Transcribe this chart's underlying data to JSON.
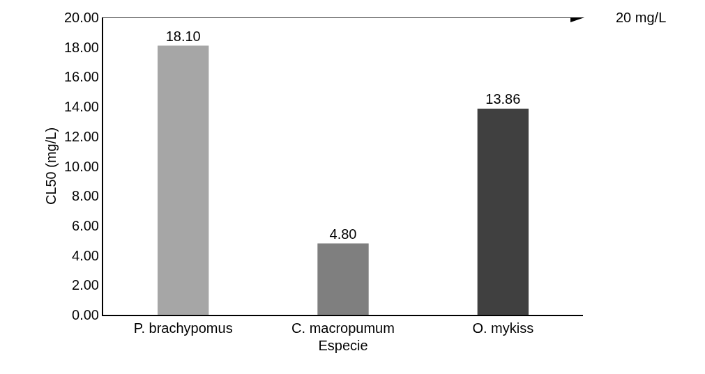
{
  "chart_data": {
    "type": "bar",
    "xlabel": "Especie",
    "ylabel": "CL50 (mg/L)",
    "categories": [
      "P. brachypomus",
      "C. macropumum",
      "O. mykiss"
    ],
    "values": [
      18.1,
      4.8,
      13.86
    ],
    "value_labels": [
      "18.10",
      "4.80",
      "13.86"
    ],
    "colors": [
      "#a6a6a6",
      "#7f7f7f",
      "#404040"
    ],
    "ylim": [
      0,
      20
    ],
    "yticks": [
      {
        "value": 0,
        "label": "0.00"
      },
      {
        "value": 2,
        "label": "2.00"
      },
      {
        "value": 4,
        "label": "4.00"
      },
      {
        "value": 6,
        "label": "6.00"
      },
      {
        "value": 8,
        "label": "8.00"
      },
      {
        "value": 10,
        "label": "10.00"
      },
      {
        "value": 12,
        "label": "12.00"
      },
      {
        "value": 14,
        "label": "14.00"
      },
      {
        "value": 16,
        "label": "16.00"
      },
      {
        "value": 18,
        "label": "18.00"
      },
      {
        "value": 20,
        "label": "20.00"
      }
    ],
    "ref_lines": [
      {
        "axis": "y",
        "value": 20,
        "label": "20 mg/L",
        "color": "#000000"
      }
    ],
    "legend": false
  }
}
